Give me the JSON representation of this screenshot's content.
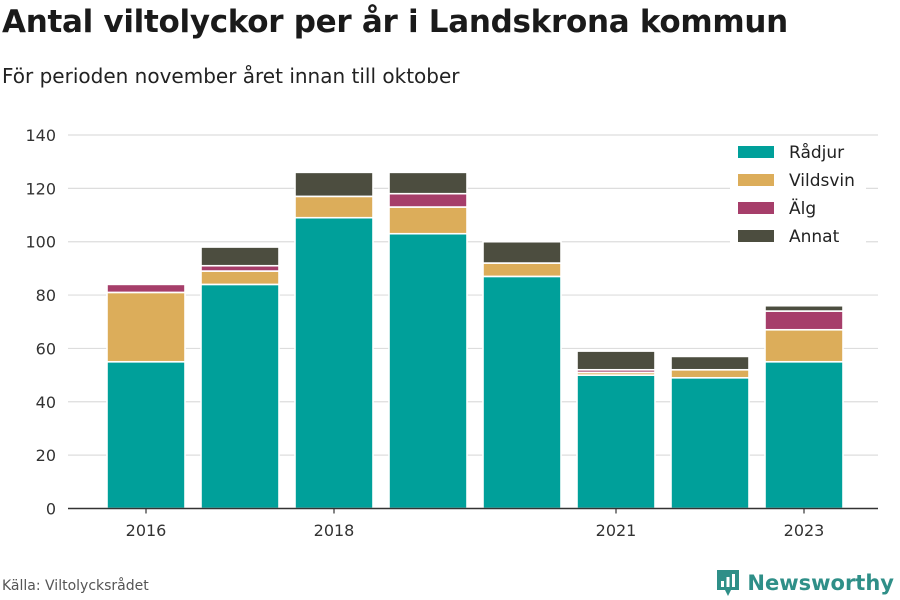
{
  "header": {
    "title": "Antal viltolyckor per år i Landskrona kommun",
    "subtitle": "För perioden november året innan till oktober"
  },
  "footer": {
    "source": "Källa: Viltolycksrådet",
    "brand": "Newsworthy"
  },
  "colors": {
    "grid": "#dddddd",
    "axis": "#333333",
    "brand": "#2f8f88"
  },
  "chart_data": {
    "type": "bar",
    "stacked": true,
    "categories": [
      "2016",
      "2017",
      "2018",
      "2019",
      "2020",
      "2021",
      "2022",
      "2023"
    ],
    "x_tick_labels": [
      "2016",
      "",
      "2018",
      "",
      "",
      "2021",
      "",
      "2023"
    ],
    "series": [
      {
        "name": "Rådjur",
        "color": "#00a09a",
        "values": [
          55,
          84,
          109,
          103,
          87,
          50,
          49,
          55
        ]
      },
      {
        "name": "Vildsvin",
        "color": "#dcad5a",
        "values": [
          26,
          5,
          8,
          10,
          5,
          1,
          3,
          12
        ]
      },
      {
        "name": "Älg",
        "color": "#a63e6a",
        "values": [
          3,
          2,
          0,
          5,
          0,
          1,
          0,
          7
        ]
      },
      {
        "name": "Annat",
        "color": "#4c4d3f",
        "values": [
          0,
          7,
          9,
          8,
          8,
          7,
          5,
          2
        ]
      }
    ],
    "ylim": [
      0,
      140
    ],
    "yticks": [
      0,
      20,
      40,
      60,
      80,
      100,
      120,
      140
    ],
    "grid": true,
    "legend_position": "top-right",
    "xlabel": "",
    "ylabel": ""
  }
}
